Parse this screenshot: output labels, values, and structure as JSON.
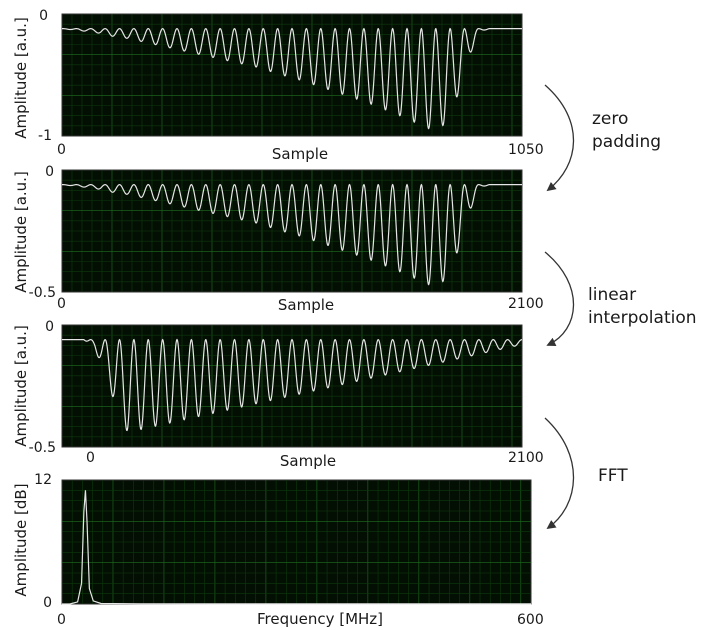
{
  "chart_data": [
    {
      "type": "line",
      "title": "",
      "xlabel": "Sample",
      "ylabel": "Amplitude [a.u.]",
      "xlim": [
        0,
        1050
      ],
      "ylim": [
        -1,
        0
      ],
      "x_ticks": [
        "0",
        "1050"
      ],
      "y_ticks": [
        "0",
        "-1"
      ],
      "grid": true,
      "series": [
        {
          "x": [
            0,
            25,
            50,
            75,
            100,
            125,
            150,
            175,
            200,
            225,
            250,
            275,
            300,
            325,
            350,
            375,
            400,
            425,
            450,
            475,
            500,
            525,
            550,
            575,
            600,
            625,
            650,
            675,
            700,
            725,
            750,
            775,
            800,
            825,
            850,
            875,
            900,
            925,
            950,
            975,
            1000,
            1025,
            1050
          ],
          "y": [
            -0.12,
            -0.13,
            -0.14,
            -0.15,
            -0.17,
            -0.19,
            -0.2,
            -0.22,
            -0.24,
            -0.26,
            -0.28,
            -0.3,
            -0.32,
            -0.34,
            -0.36,
            -0.38,
            -0.4,
            -0.42,
            -0.44,
            -0.47,
            -0.5,
            -0.52,
            -0.55,
            -0.58,
            -0.61,
            -0.64,
            -0.67,
            -0.7,
            -0.73,
            -0.77,
            -0.8,
            -0.84,
            -0.88,
            -0.92,
            -0.96,
            -0.9,
            -0.7,
            -0.4,
            -0.15,
            -0.12,
            -0.12,
            -0.12,
            -0.12
          ]
        }
      ]
    },
    {
      "type": "line",
      "title": "",
      "xlabel": "Sample",
      "ylabel": "Amplitude [a.u.]",
      "xlim": [
        0,
        2100
      ],
      "ylim": [
        -0.5,
        0
      ],
      "x_ticks": [
        "0",
        "2100"
      ],
      "y_ticks": [
        "0",
        "-0.5"
      ],
      "grid": true,
      "series": [
        {
          "x": [
            0,
            50,
            100,
            150,
            200,
            250,
            300,
            350,
            400,
            450,
            500,
            550,
            600,
            650,
            700,
            750,
            800,
            850,
            900,
            950,
            1000,
            1050,
            1100,
            1150,
            1200,
            1250,
            1300,
            1350,
            1400,
            1450,
            1500,
            1550,
            1600,
            1650,
            1700,
            1750,
            1800,
            1850,
            1900,
            1950,
            2000,
            2050,
            2100
          ],
          "y": [
            -0.06,
            -0.065,
            -0.07,
            -0.075,
            -0.085,
            -0.095,
            -0.1,
            -0.11,
            -0.12,
            -0.13,
            -0.14,
            -0.15,
            -0.16,
            -0.17,
            -0.18,
            -0.19,
            -0.2,
            -0.21,
            -0.22,
            -0.235,
            -0.25,
            -0.26,
            -0.275,
            -0.29,
            -0.305,
            -0.32,
            -0.335,
            -0.35,
            -0.365,
            -0.385,
            -0.4,
            -0.42,
            -0.44,
            -0.46,
            -0.48,
            -0.45,
            -0.35,
            -0.2,
            -0.075,
            -0.06,
            -0.06,
            -0.06,
            -0.06
          ]
        }
      ]
    },
    {
      "type": "line",
      "title": "",
      "xlabel": "Sample",
      "ylabel": "Amplitude [a.u.]",
      "xlim": [
        0,
        2100
      ],
      "ylim": [
        -0.5,
        0
      ],
      "x_ticks": [
        "0",
        "2100"
      ],
      "y_ticks": [
        "0",
        "-0.5"
      ],
      "grid": true,
      "series": [
        {
          "x": [
            0,
            50,
            100,
            150,
            200,
            250,
            300,
            350,
            400,
            450,
            500,
            550,
            600,
            650,
            700,
            750,
            800,
            850,
            900,
            950,
            1000,
            1050,
            1100,
            1150,
            1200,
            1250,
            1300,
            1350,
            1400,
            1450,
            1500,
            1550,
            1600,
            1650,
            1700,
            1750,
            1800,
            1850,
            1900,
            1950,
            2000,
            2050,
            2100
          ],
          "y": [
            -0.06,
            -0.06,
            -0.06,
            -0.1,
            -0.2,
            -0.35,
            -0.44,
            -0.43,
            -0.42,
            -0.41,
            -0.4,
            -0.39,
            -0.38,
            -0.37,
            -0.36,
            -0.35,
            -0.34,
            -0.33,
            -0.32,
            -0.31,
            -0.3,
            -0.29,
            -0.28,
            -0.27,
            -0.26,
            -0.25,
            -0.24,
            -0.23,
            -0.22,
            -0.21,
            -0.2,
            -0.19,
            -0.18,
            -0.17,
            -0.16,
            -0.15,
            -0.14,
            -0.13,
            -0.12,
            -0.11,
            -0.1,
            -0.09,
            -0.08
          ]
        }
      ]
    },
    {
      "type": "line",
      "title": "",
      "xlabel": "Frequency [MHz]",
      "ylabel": "Amplitude [dB]",
      "xlim": [
        0,
        600
      ],
      "ylim": [
        0,
        12
      ],
      "x_ticks": [
        "0",
        "600"
      ],
      "y_ticks": [
        "12",
        "0"
      ],
      "grid": true,
      "series": [
        {
          "x": [
            0,
            10,
            20,
            25,
            28,
            30,
            32,
            35,
            40,
            50,
            100,
            200,
            300,
            400,
            500,
            600
          ],
          "y": [
            0,
            0,
            0.2,
            2.0,
            9.0,
            11.0,
            8.0,
            1.5,
            0.3,
            0.05,
            0.02,
            0.01,
            0.01,
            0.01,
            0.01,
            0.01
          ]
        }
      ]
    }
  ],
  "steps": [
    {
      "lines": [
        "zero",
        "padding"
      ]
    },
    {
      "lines": [
        "linear",
        "interpolation"
      ]
    },
    {
      "lines": [
        "FFT"
      ]
    }
  ],
  "colors": {
    "plot_background": "#040f04",
    "minor_grid": "#0c3a0c",
    "major_grid": "#1f6e1f",
    "signal": "#e6e6e6",
    "arrow": "#333333"
  }
}
